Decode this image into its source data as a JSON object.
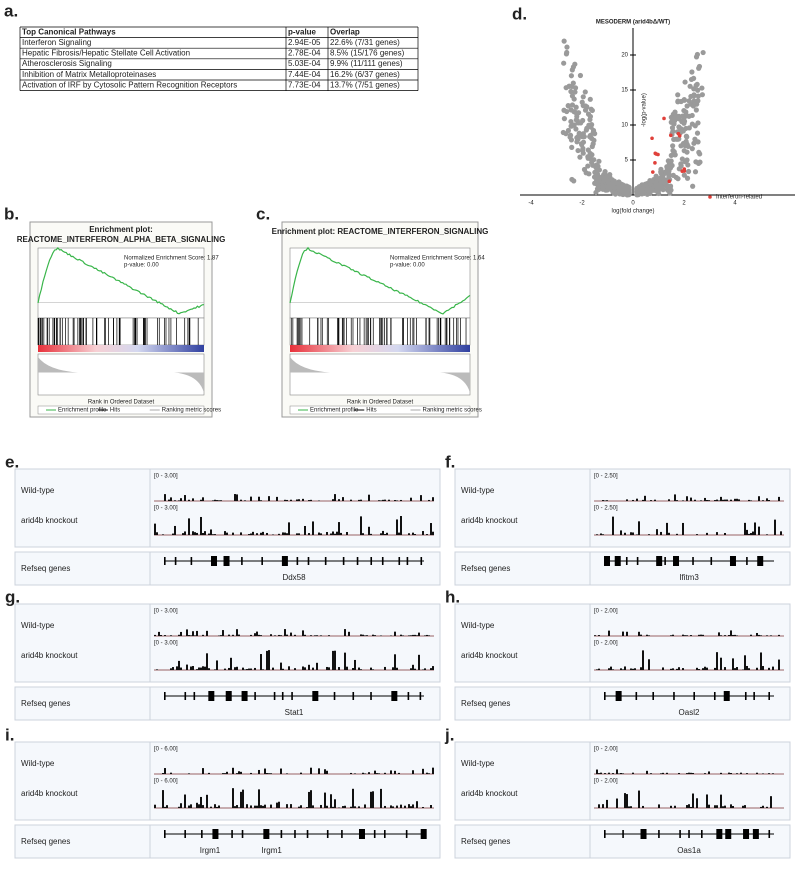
{
  "panel_a": {
    "label": "a.",
    "header": [
      "Top Canonical Pathways",
      "p-value",
      "Overlap"
    ],
    "rows": [
      [
        "Interferon Signaling",
        "2.94E-05",
        "22.6% (7/31 genes)"
      ],
      [
        "Hepatic Fibrosis/Hepatic Stellate Cell Activation",
        "2.78E-04",
        "8.5% (15/176 genes)"
      ],
      [
        "Atherosclerosis Signaling",
        "5.03E-04",
        "9.9% (11/111 genes)"
      ],
      [
        "Inhibition of Matrix Metalloproteinases",
        "7.44E-04",
        "16.2% (6/37 genes)"
      ],
      [
        "Activation of IRF by Cytosolic Pattern Recognition Receptors",
        "7.73E-04",
        "13.7% (7/51 genes)"
      ]
    ]
  },
  "panel_b": {
    "label": "b.",
    "title": "Enrichment plot:",
    "subtitle": "REACTOME_INTERFERON_ALPHA_BETA_SIGNALING",
    "score": "Normalized Enrichment Score: 1.87",
    "pvalue": "p-value: 0.00",
    "xlabel": "Rank in Ordered Dataset",
    "legend": [
      "Enrichment profile",
      "Hits",
      "Ranking metric scores"
    ]
  },
  "panel_c": {
    "label": "c.",
    "title": "Enrichment plot: REACTOME_INTERFERON_SIGNALING",
    "score": "Normalized Enrichment Score: 1.64",
    "pvalue": "p-value: 0.00",
    "xlabel": "Rank in Ordered Dataset",
    "legend": [
      "Enrichment profile",
      "Hits",
      "Ranking metric scores"
    ]
  },
  "panel_d": {
    "label": "d.",
    "title": "MESODERM (arid4bΔ/WT)",
    "ylabel": "-log(p-value)",
    "xlabel": "log(fold change)",
    "legend": "Interferon-related",
    "xticks": [
      "-4",
      "-2",
      "0",
      "2",
      "4"
    ],
    "yticks": [
      "5",
      "10",
      "15",
      "20"
    ]
  },
  "track_labels": {
    "wild_type": "Wild-type",
    "knockout": "arid4b knockout",
    "refseq": "Refseq genes"
  },
  "tracks": [
    {
      "label": "e.",
      "wt_scale": "[0 - 3.00]",
      "ko_scale": "[0 - 3.00]",
      "genes": [
        "Ddx58"
      ]
    },
    {
      "label": "f.",
      "wt_scale": "[0 - 2.50]",
      "ko_scale": "[0 - 2.50]",
      "genes": [
        "Ifitm3"
      ]
    },
    {
      "label": "g.",
      "wt_scale": "[0 - 3.00]",
      "ko_scale": "[0 - 3.00]",
      "genes": [
        "Stat1"
      ]
    },
    {
      "label": "h.",
      "wt_scale": "[0 - 2.00]",
      "ko_scale": "[0 - 2.00]",
      "genes": [
        "Oasl2"
      ]
    },
    {
      "label": "i.",
      "wt_scale": "[0 - 6.00]",
      "ko_scale": "[0 - 6.00]",
      "genes": [
        "Irgm1",
        "Irgm1"
      ]
    },
    {
      "label": "j.",
      "wt_scale": "[0 - 2.00]",
      "ko_scale": "[0 - 2.00]",
      "genes": [
        "Oas1a"
      ]
    }
  ]
}
